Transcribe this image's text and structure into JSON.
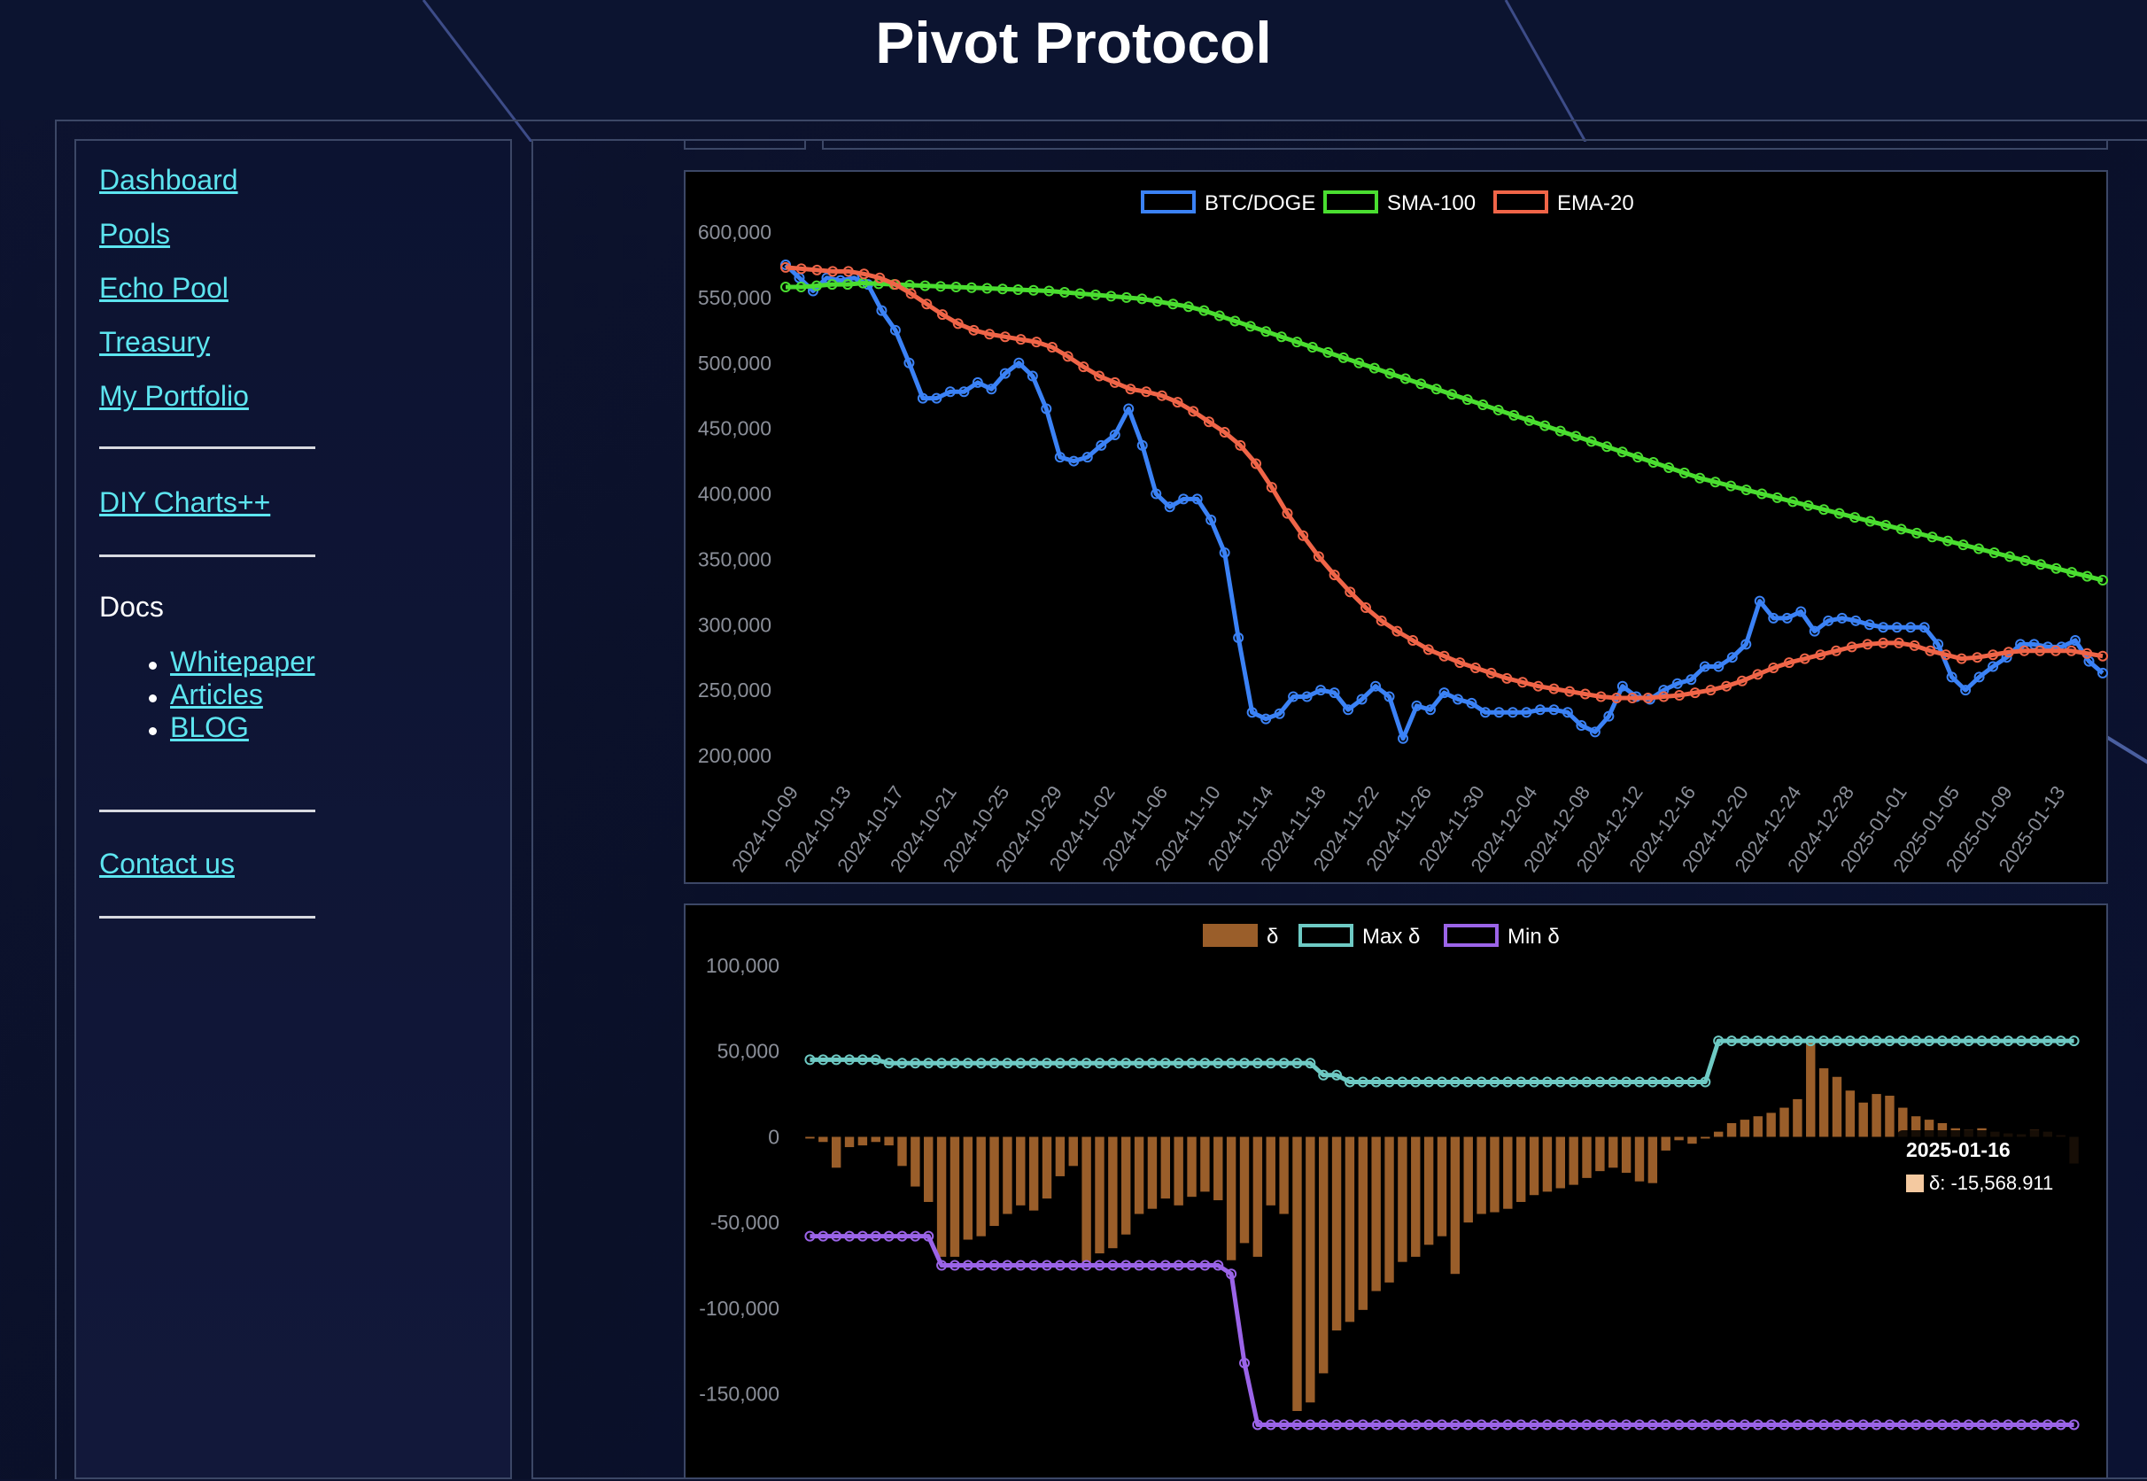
{
  "app": {
    "title": "Pivot Protocol"
  },
  "sidebar": {
    "links": [
      "Dashboard",
      "Pools",
      "Echo Pool",
      "Treasury",
      "My Portfolio"
    ],
    "diy": "DIY Charts++",
    "docs_label": "Docs",
    "docs_items": [
      "Whitepaper",
      "Articles",
      "BLOG"
    ],
    "contact": "Contact us"
  },
  "chart_data": [
    {
      "type": "line",
      "legend": [
        "BTC/DOGE",
        "SMA-100",
        "EMA-20"
      ],
      "ylim": [
        200000,
        600000
      ],
      "yticks": [
        "600,000",
        "550,000",
        "500,000",
        "450,000",
        "400,000",
        "350,000",
        "300,000",
        "250,000",
        "200,000"
      ],
      "xticks": [
        "2024-10-09",
        "2024-10-13",
        "2024-10-17",
        "2024-10-21",
        "2024-10-25",
        "2024-10-29",
        "2024-11-02",
        "2024-11-06",
        "2024-11-10",
        "2024-11-14",
        "2024-11-18",
        "2024-11-22",
        "2024-11-26",
        "2024-11-30",
        "2024-12-04",
        "2024-12-08",
        "2024-12-12",
        "2024-12-16",
        "2024-12-20",
        "2024-12-24",
        "2024-12-28",
        "2025-01-01",
        "2025-01-05",
        "2025-01-09",
        "2025-01-13"
      ],
      "colors": {
        "BTC/DOGE": "#3b82f6",
        "SMA-100": "#4ade30",
        "EMA-20": "#f06548"
      },
      "series": [
        {
          "name": "BTC/DOGE",
          "values": [
            575000,
            565000,
            555000,
            565000,
            563000,
            565000,
            560000,
            540000,
            525000,
            500000,
            473000,
            473000,
            478000,
            478000,
            485000,
            480000,
            492000,
            500000,
            490000,
            465000,
            428000,
            425000,
            428000,
            437000,
            445000,
            465000,
            437000,
            400000,
            390000,
            396000,
            396000,
            380000,
            355000,
            290000,
            233000,
            228000,
            232000,
            245000,
            245000,
            250000,
            248000,
            235000,
            243000,
            253000,
            245000,
            213000,
            238000,
            235000,
            248000,
            243000,
            240000,
            233000,
            233000,
            233000,
            233000,
            235000,
            235000,
            233000,
            223000,
            218000,
            230000,
            253000,
            245000,
            243000,
            250000,
            255000,
            258000,
            268000,
            268000,
            275000,
            285000,
            318000,
            305000,
            305000,
            310000,
            295000,
            303000,
            305000,
            303000,
            300000,
            298000,
            298000,
            298000,
            298000,
            285000,
            260000,
            250000,
            260000,
            268000,
            275000,
            285000,
            285000,
            283000,
            283000,
            288000,
            272000,
            263000
          ]
        },
        {
          "name": "SMA-100",
          "values": [
            558000,
            558000,
            559000,
            560000,
            560000,
            561000,
            560500,
            560000,
            559500,
            559000,
            558500,
            558000,
            557500,
            557000,
            556500,
            556000,
            555500,
            555000,
            554000,
            553000,
            552000,
            551000,
            550000,
            549000,
            547000,
            545000,
            543000,
            540000,
            536000,
            532000,
            528000,
            524000,
            520000,
            516000,
            512000,
            508000,
            504000,
            500000,
            496000,
            492000,
            488000,
            484000,
            480000,
            476000,
            472000,
            468000,
            464000,
            460000,
            456000,
            452000,
            448000,
            444000,
            440000,
            436000,
            432000,
            428000,
            424000,
            420000,
            416000,
            412000,
            409000,
            406000,
            403000,
            400000,
            397000,
            394000,
            391000,
            388000,
            385000,
            382000,
            379000,
            376000,
            373000,
            370000,
            367000,
            364000,
            361000,
            358000,
            355000,
            352000,
            349000,
            346000,
            343000,
            340000,
            337000,
            334000
          ]
        },
        {
          "name": "EMA-20",
          "values": [
            573000,
            572000,
            571000,
            570000,
            570000,
            568000,
            565000,
            560000,
            553000,
            545000,
            537000,
            530000,
            525000,
            522000,
            520000,
            518000,
            516000,
            512000,
            505000,
            497000,
            490000,
            485000,
            480000,
            478000,
            475000,
            470000,
            463000,
            455000,
            447000,
            437000,
            423000,
            405000,
            385000,
            368000,
            352000,
            338000,
            325000,
            313000,
            303000,
            295000,
            288000,
            281000,
            276000,
            271000,
            267000,
            263000,
            259000,
            256000,
            253000,
            251000,
            249000,
            247000,
            245000,
            244000,
            244000,
            244000,
            245000,
            246000,
            248000,
            250000,
            253000,
            257000,
            262000,
            267000,
            271000,
            274000,
            277000,
            280000,
            283000,
            285000,
            286000,
            286000,
            284000,
            280000,
            277000,
            274000,
            275000,
            277000,
            279000,
            280000,
            280000,
            280000,
            280000,
            278000,
            276000
          ]
        }
      ]
    },
    {
      "type": "bar",
      "legend": [
        "δ",
        "Max δ",
        "Min δ"
      ],
      "ylim": [
        -175000,
        100000
      ],
      "yticks": [
        "100,000",
        "50,000",
        "0",
        "-50,000",
        "-100,000",
        "-150,000"
      ],
      "colors": {
        "δ": "#9a5e2a",
        "Max δ": "#6ecac4",
        "Min δ": "#9b64e8"
      },
      "series": [
        {
          "name": "δ",
          "values": [
            -1000,
            -3000,
            -18000,
            -6000,
            -5000,
            -3000,
            -5000,
            -17000,
            -29000,
            -38000,
            -70000,
            -70000,
            -60000,
            -58000,
            -52000,
            -45000,
            -40000,
            -43000,
            -36000,
            -23000,
            -17000,
            -73000,
            -68000,
            -65000,
            -57000,
            -45000,
            -42000,
            -36000,
            -40000,
            -35000,
            -32000,
            -37000,
            -72000,
            -62000,
            -70000,
            -40000,
            -45000,
            -160000,
            -155000,
            -138000,
            -113000,
            -108000,
            -101000,
            -90000,
            -85000,
            -73000,
            -70000,
            -63000,
            -58000,
            -80000,
            -50000,
            -45000,
            -44000,
            -42000,
            -38000,
            -34000,
            -32000,
            -30000,
            -28000,
            -24000,
            -20000,
            -18000,
            -21000,
            -26000,
            -27000,
            -8000,
            -2000,
            -4000,
            -1000,
            3000,
            8000,
            10000,
            12000,
            14000,
            17000,
            22000,
            56000,
            40000,
            35000,
            27000,
            20000,
            25000,
            24000,
            17000,
            12000,
            10000,
            8000,
            5000,
            4000,
            5000,
            3000,
            2000,
            1500,
            4000,
            3000,
            1000,
            -15569
          ]
        },
        {
          "name": "Max δ",
          "values": [
            45000,
            45000,
            45000,
            45000,
            45000,
            45000,
            43000,
            43000,
            43000,
            43000,
            43000,
            43000,
            43000,
            43000,
            43000,
            43000,
            43000,
            43000,
            43000,
            43000,
            43000,
            43000,
            43000,
            43000,
            43000,
            43000,
            43000,
            43000,
            43000,
            43000,
            43000,
            43000,
            43000,
            43000,
            43000,
            43000,
            43000,
            43000,
            43000,
            36000,
            36000,
            32000,
            32000,
            32000,
            32000,
            32000,
            32000,
            32000,
            32000,
            32000,
            32000,
            32000,
            32000,
            32000,
            32000,
            32000,
            32000,
            32000,
            32000,
            32000,
            32000,
            32000,
            32000,
            32000,
            32000,
            32000,
            32000,
            32000,
            32000,
            56000,
            56000,
            56000,
            56000,
            56000,
            56000,
            56000,
            56000,
            56000,
            56000,
            56000,
            56000,
            56000,
            56000,
            56000,
            56000,
            56000,
            56000,
            56000,
            56000,
            56000,
            56000,
            56000,
            56000,
            56000,
            56000,
            56000,
            56000
          ]
        },
        {
          "name": "Min δ",
          "values": [
            -58000,
            -58000,
            -58000,
            -58000,
            -58000,
            -58000,
            -58000,
            -58000,
            -58000,
            -58000,
            -75000,
            -75000,
            -75000,
            -75000,
            -75000,
            -75000,
            -75000,
            -75000,
            -75000,
            -75000,
            -75000,
            -75000,
            -75000,
            -75000,
            -75000,
            -75000,
            -75000,
            -75000,
            -75000,
            -75000,
            -75000,
            -75000,
            -80000,
            -132000,
            -168000,
            -168000,
            -168000,
            -168000,
            -168000,
            -168000,
            -168000,
            -168000,
            -168000,
            -168000,
            -168000,
            -168000,
            -168000,
            -168000,
            -168000,
            -168000,
            -168000,
            -168000,
            -168000,
            -168000,
            -168000,
            -168000,
            -168000,
            -168000,
            -168000,
            -168000,
            -168000,
            -168000,
            -168000,
            -168000,
            -168000,
            -168000,
            -168000,
            -168000,
            -168000,
            -168000,
            -168000,
            -168000,
            -168000,
            -168000,
            -168000,
            -168000,
            -168000,
            -168000,
            -168000,
            -168000,
            -168000,
            -168000,
            -168000,
            -168000,
            -168000,
            -168000,
            -168000,
            -168000,
            -168000,
            -168000,
            -168000,
            -168000,
            -168000,
            -168000,
            -168000,
            -168000,
            -168000
          ]
        }
      ],
      "tooltip": {
        "title": "2025-01-16",
        "label": "δ: -15,568.911",
        "swatch_color": "#f4c9a0"
      }
    }
  ]
}
